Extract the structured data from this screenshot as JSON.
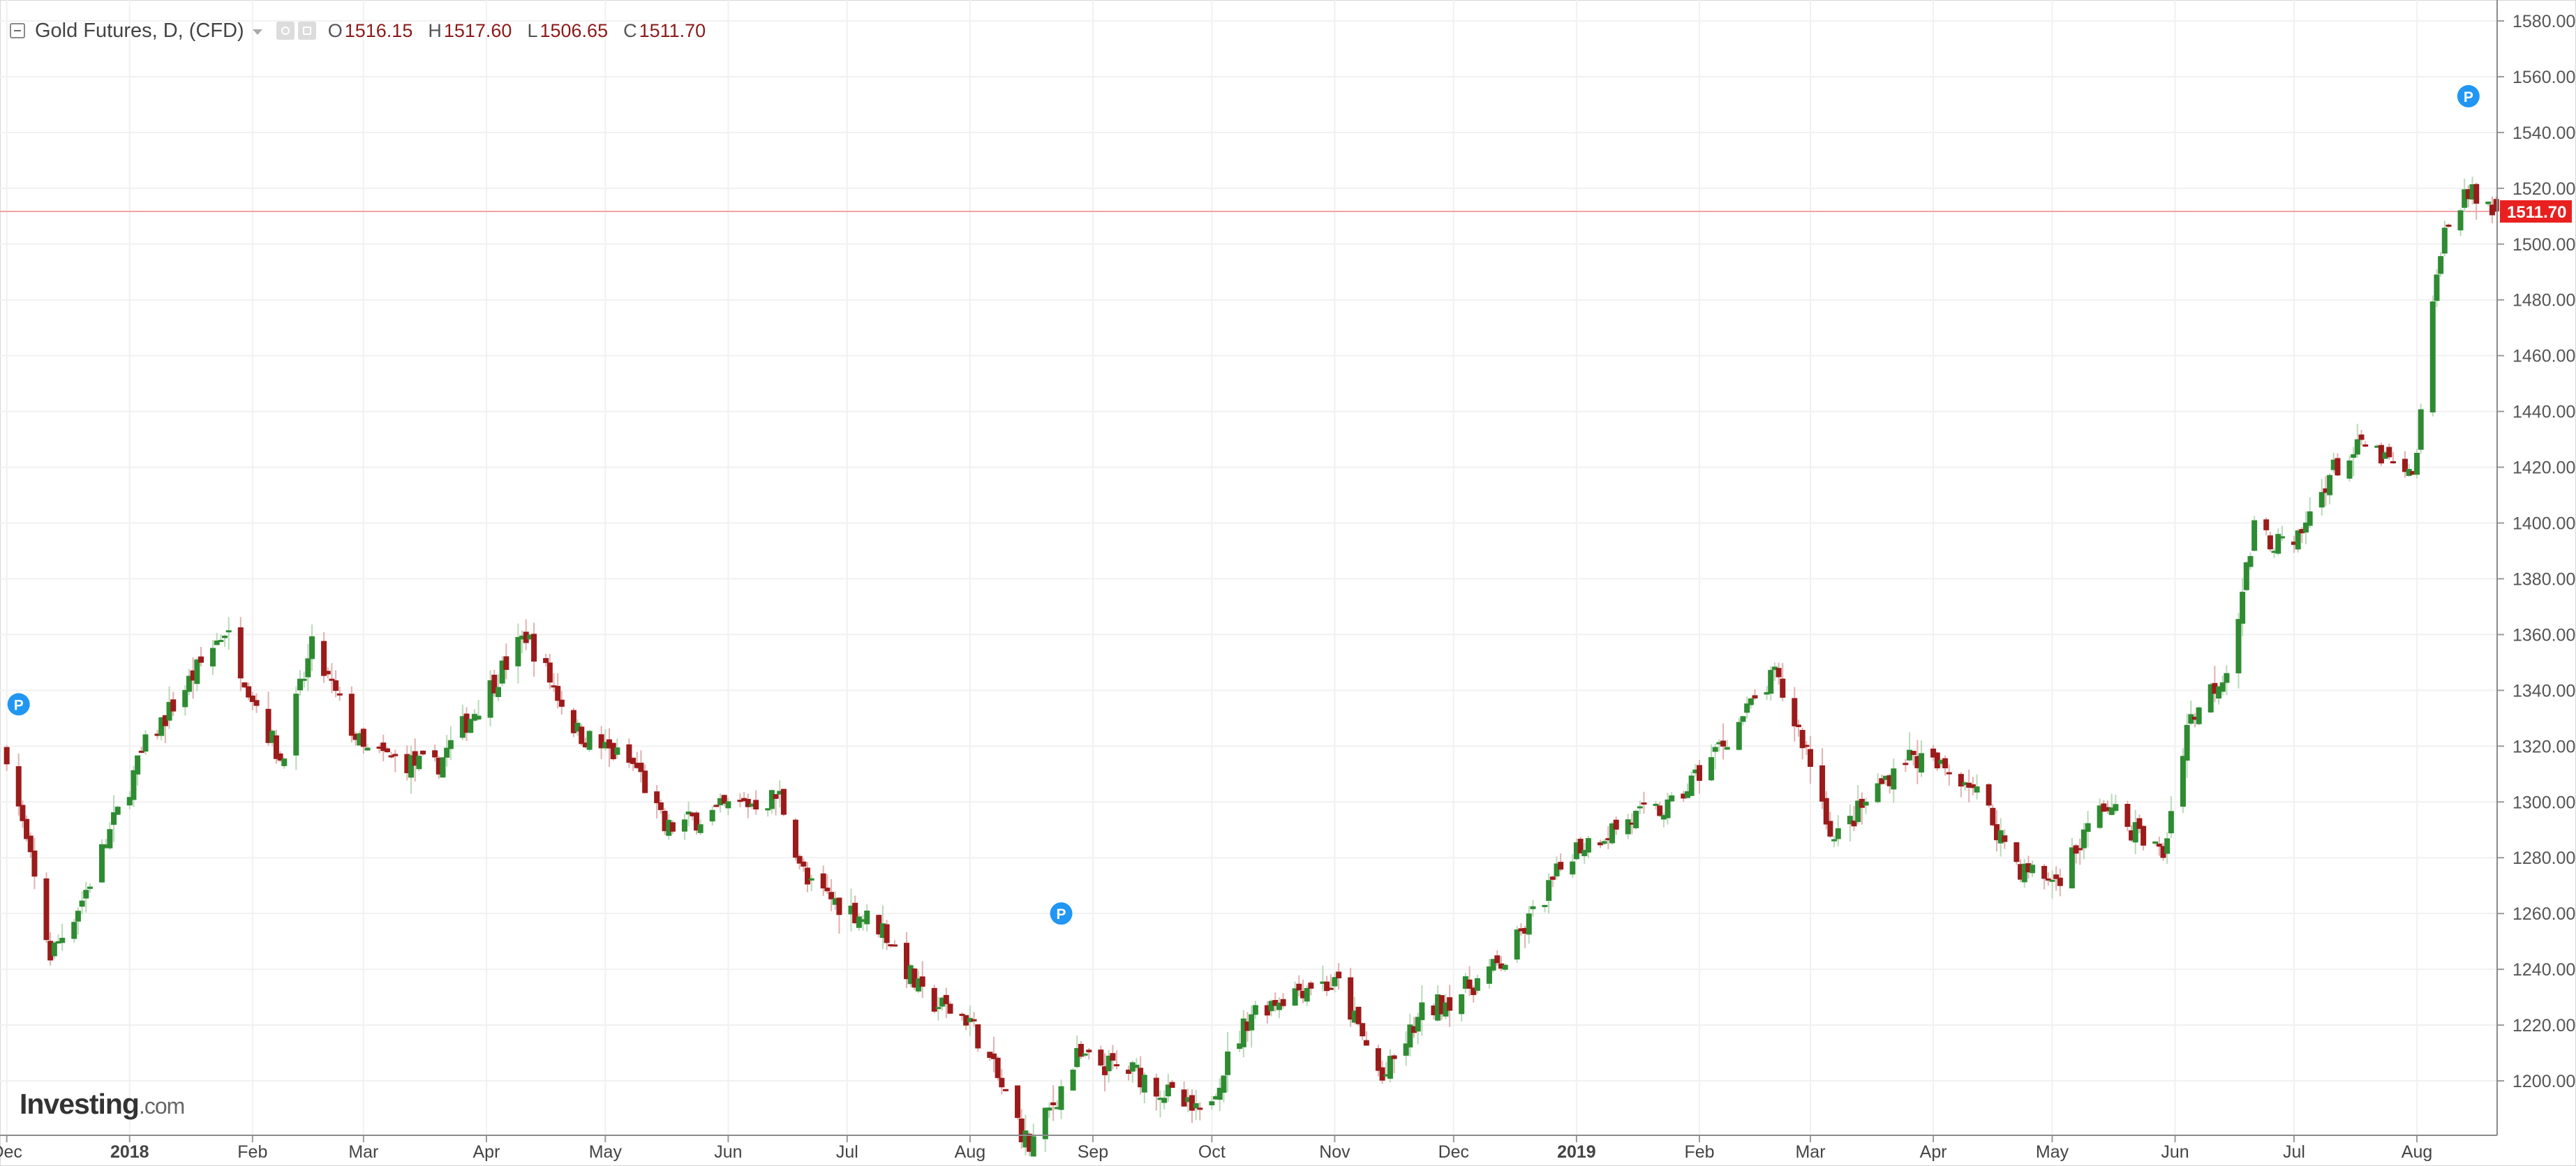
{
  "legend": {
    "title": "Gold Futures, D, (CFD)",
    "open_label": "O",
    "open": "1516.15",
    "high_label": "H",
    "high": "1517.60",
    "low_label": "L",
    "low": "1506.65",
    "close_label": "C",
    "close": "1511.70"
  },
  "price_tag": "1511.70",
  "watermark": {
    "brand": "Investing",
    "suffix": ".com"
  },
  "colors": {
    "up": "#2e8b32",
    "down": "#9b1b1b",
    "tag": "#e8201f",
    "marker": "#2196f3",
    "last_line": "#f4a3a3",
    "grid": "#f1f1f1"
  },
  "icons": [
    "collapse-icon",
    "dropdown-caret-icon",
    "eye-icon",
    "settings-icon",
    "p-marker-icon"
  ],
  "chart_data": {
    "type": "candlestick",
    "x_range": [
      "2017-11-30",
      "2019-08-23"
    ],
    "y_range": [
      1190,
      1586
    ],
    "y_ticks": [
      "1200.00",
      "1220.00",
      "1240.00",
      "1260.00",
      "1280.00",
      "1300.00",
      "1320.00",
      "1340.00",
      "1360.00",
      "1380.00",
      "1400.00",
      "1420.00",
      "1440.00",
      "1460.00",
      "1480.00",
      "1500.00",
      "1520.00",
      "1540.00",
      "1560.00",
      "1580.00"
    ],
    "x_ticks": [
      {
        "label": "Dec",
        "date": "2017-12-01",
        "bold": false
      },
      {
        "label": "2018",
        "date": "2018-01-01",
        "bold": true
      },
      {
        "label": "Feb",
        "date": "2018-02-01",
        "bold": false
      },
      {
        "label": "Mar",
        "date": "2018-03-01",
        "bold": false
      },
      {
        "label": "Apr",
        "date": "2018-04-01",
        "bold": false
      },
      {
        "label": "May",
        "date": "2018-05-01",
        "bold": false
      },
      {
        "label": "Jun",
        "date": "2018-06-01",
        "bold": false
      },
      {
        "label": "Jul",
        "date": "2018-07-01",
        "bold": false
      },
      {
        "label": "Aug",
        "date": "2018-08-01",
        "bold": false
      },
      {
        "label": "Sep",
        "date": "2018-09-01",
        "bold": false
      },
      {
        "label": "Oct",
        "date": "2018-10-01",
        "bold": false
      },
      {
        "label": "Nov",
        "date": "2018-11-01",
        "bold": false
      },
      {
        "label": "Dec",
        "date": "2018-12-01",
        "bold": false
      },
      {
        "label": "2019",
        "date": "2019-01-01",
        "bold": true
      },
      {
        "label": "Feb",
        "date": "2019-02-01",
        "bold": false
      },
      {
        "label": "Mar",
        "date": "2019-03-01",
        "bold": false
      },
      {
        "label": "Apr",
        "date": "2019-04-01",
        "bold": false
      },
      {
        "label": "May",
        "date": "2019-05-01",
        "bold": false
      },
      {
        "label": "Jun",
        "date": "2019-06-01",
        "bold": false
      },
      {
        "label": "Jul",
        "date": "2019-07-01",
        "bold": false
      },
      {
        "label": "Aug",
        "date": "2019-08-01",
        "bold": false
      }
    ],
    "last_price": 1511.7,
    "anchors": [
      [
        "2017-12-01",
        1318
      ],
      [
        "2017-12-12",
        1245
      ],
      [
        "2017-12-20",
        1265
      ],
      [
        "2018-01-05",
        1320
      ],
      [
        "2018-01-25",
        1362
      ],
      [
        "2018-02-08",
        1315
      ],
      [
        "2018-02-16",
        1355
      ],
      [
        "2018-03-01",
        1318
      ],
      [
        "2018-03-19",
        1312
      ],
      [
        "2018-04-11",
        1360
      ],
      [
        "2018-04-24",
        1325
      ],
      [
        "2018-05-09",
        1312
      ],
      [
        "2018-05-16",
        1290
      ],
      [
        "2018-06-01",
        1298
      ],
      [
        "2018-06-14",
        1302
      ],
      [
        "2018-06-21",
        1270
      ],
      [
        "2018-07-10",
        1255
      ],
      [
        "2018-07-20",
        1230
      ],
      [
        "2018-08-01",
        1222
      ],
      [
        "2018-08-16",
        1176
      ],
      [
        "2018-08-28",
        1208
      ],
      [
        "2018-09-12",
        1203
      ],
      [
        "2018-09-28",
        1187
      ],
      [
        "2018-10-11",
        1225
      ],
      [
        "2018-10-26",
        1235
      ],
      [
        "2018-11-02",
        1234
      ],
      [
        "2018-11-13",
        1200
      ],
      [
        "2018-11-23",
        1224
      ],
      [
        "2018-12-03",
        1232
      ],
      [
        "2018-12-14",
        1243
      ],
      [
        "2018-12-31",
        1283
      ],
      [
        "2019-01-15",
        1294
      ],
      [
        "2019-01-25",
        1298
      ],
      [
        "2019-02-20",
        1345
      ],
      [
        "2019-02-28",
        1319
      ],
      [
        "2019-03-07",
        1286
      ],
      [
        "2019-03-25",
        1317
      ],
      [
        "2019-04-10",
        1308
      ],
      [
        "2019-04-23",
        1276
      ],
      [
        "2019-05-02",
        1272
      ],
      [
        "2019-05-14",
        1299
      ],
      [
        "2019-05-29",
        1281
      ],
      [
        "2019-06-04",
        1328
      ],
      [
        "2019-06-14",
        1348
      ],
      [
        "2019-06-21",
        1397
      ],
      [
        "2019-07-01",
        1390
      ],
      [
        "2019-07-10",
        1418
      ],
      [
        "2019-07-19",
        1428
      ],
      [
        "2019-07-31",
        1415
      ],
      [
        "2019-08-07",
        1500
      ],
      [
        "2019-08-13",
        1519
      ],
      [
        "2019-08-21",
        1511.7
      ]
    ],
    "markers": [
      {
        "date": "2017-12-04",
        "price": 1335,
        "label": "P"
      },
      {
        "date": "2018-08-24",
        "price": 1260,
        "label": "P"
      },
      {
        "date": "2019-08-14",
        "price": 1553,
        "label": "P"
      }
    ]
  }
}
